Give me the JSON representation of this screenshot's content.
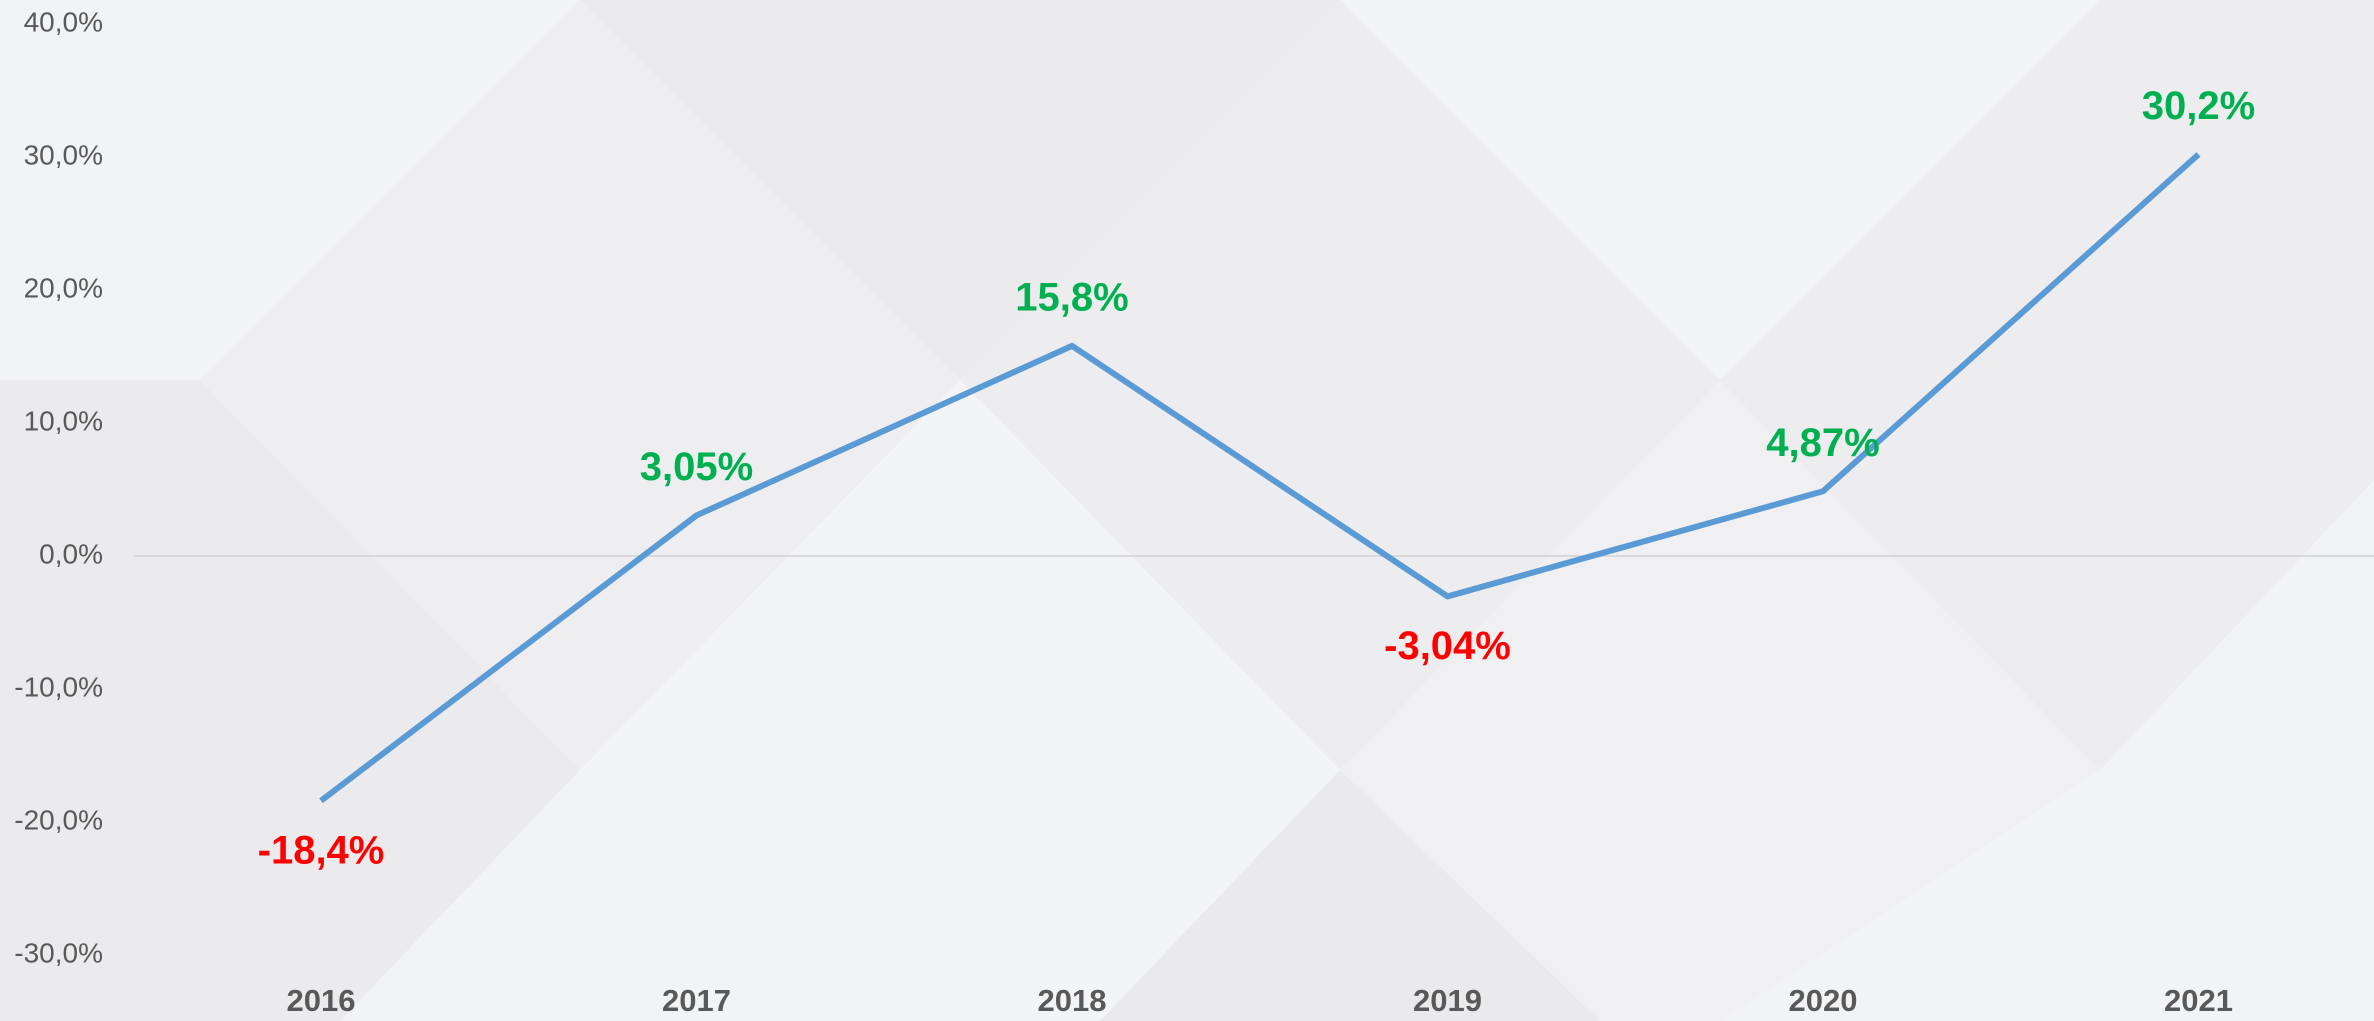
{
  "chart_data": {
    "type": "line",
    "categories": [
      "2016",
      "2017",
      "2018",
      "2019",
      "2020",
      "2021"
    ],
    "series": [
      {
        "color": "#5b9bd5",
        "values": [
          -18.4,
          3.05,
          15.8,
          -3.04,
          4.87,
          30.2
        ],
        "value_labels": [
          "-18,4%",
          "3,05%",
          "15,8%",
          "-3,04%",
          "4,87%",
          "30,2%"
        ]
      }
    ],
    "positive_label_color": "#00b050",
    "negative_label_color": "#ff0000",
    "ylim": [
      -30,
      40
    ],
    "yticks": [
      {
        "value": -30,
        "label": "-30,0%"
      },
      {
        "value": -20,
        "label": "-20,0%"
      },
      {
        "value": -10,
        "label": "-10,0%"
      },
      {
        "value": 0,
        "label": "0,0%"
      },
      {
        "value": 10,
        "label": "10,0%"
      },
      {
        "value": 20,
        "label": "20,0%"
      },
      {
        "value": 30,
        "label": "30,0%"
      },
      {
        "value": 40,
        "label": "40,0%"
      }
    ],
    "zero_line": true
  }
}
